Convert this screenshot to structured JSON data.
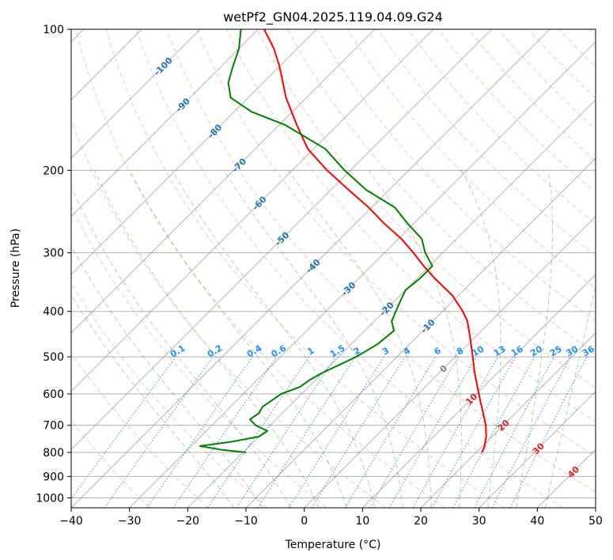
{
  "chart_data": {
    "type": "line",
    "title": "wetPf2_GN04.2025.119.04.09.G24",
    "xlabel": "Temperature (°C)",
    "ylabel": "Pressure (hPa)",
    "xlim": [
      -40,
      50
    ],
    "ylim": [
      1050,
      100
    ],
    "y_scale": "log",
    "x_ticks": [
      "−40",
      "−30",
      "−20",
      "−10",
      "0",
      "10",
      "20",
      "30",
      "40",
      "50"
    ],
    "y_ticks": [
      "100",
      "200",
      "300",
      "400",
      "500",
      "600",
      "700",
      "800",
      "900",
      "1000"
    ],
    "grid": true,
    "series": [
      {
        "role": "temperature",
        "color": "#ff0000",
        "pressure": [
          800,
          780,
          740,
          700,
          660,
          620,
          580,
          540,
          500,
          460,
          420,
          400,
          370,
          340,
          320,
          300,
          280,
          260,
          240,
          220,
          200,
          180,
          160,
          140,
          120,
          110,
          100
        ],
        "temperature": [
          21.0,
          20.5,
          19.0,
          17.0,
          14.5,
          11.8,
          9.0,
          6.0,
          3.0,
          -0.3,
          -4.0,
          -6.5,
          -11.0,
          -17.0,
          -21.0,
          -25.0,
          -29.5,
          -35.0,
          -40.5,
          -47.0,
          -54.0,
          -61.0,
          -67.0,
          -73.5,
          -80.0,
          -84.0,
          -89.0
        ]
      },
      {
        "role": "dewpoint",
        "color": "#008000",
        "pressure": [
          800,
          790,
          775,
          760,
          740,
          720,
          700,
          680,
          660,
          640,
          620,
          600,
          580,
          560,
          540,
          520,
          500,
          470,
          440,
          420,
          400,
          380,
          360,
          340,
          320,
          300,
          280,
          260,
          240,
          220,
          200,
          180,
          160,
          150,
          140,
          130,
          120,
          110,
          100
        ],
        "temperature": [
          -19.5,
          -24.0,
          -28.5,
          -24.0,
          -20.0,
          -19.5,
          -22.5,
          -24.5,
          -24.0,
          -24.5,
          -24.0,
          -23.5,
          -21.5,
          -21.0,
          -20.0,
          -18.5,
          -17.0,
          -15.5,
          -15.0,
          -17.0,
          -18.0,
          -19.0,
          -20.0,
          -19.5,
          -19.5,
          -23.0,
          -26.0,
          -31.0,
          -36.0,
          -44.0,
          -51.0,
          -58.0,
          -69.0,
          -77.0,
          -83.0,
          -86.0,
          -88.0,
          -90.0,
          -93.0
        ]
      }
    ],
    "dry_adiabats": [
      -30,
      -20,
      -10,
      0,
      10,
      20,
      30,
      40,
      50,
      60,
      70,
      80,
      90,
      100,
      110,
      120,
      130,
      140,
      150,
      160,
      170,
      180,
      190
    ],
    "moist_adiabats": [
      -15,
      -10,
      -5,
      0,
      5,
      10,
      15,
      20,
      25,
      30,
      35,
      40
    ],
    "mixing_ratio_labels": [
      "0.1",
      "0.2",
      "0.4",
      "0.6",
      "1",
      "1.5",
      "2",
      "3",
      "4",
      "6",
      "8",
      "10",
      "13",
      "16",
      "20",
      "25",
      "30",
      "36"
    ],
    "isotherm_labels_left": [
      "-100",
      "-90",
      "-80",
      "-70",
      "-60",
      "-50",
      "-40",
      "-30",
      "-20",
      "-10"
    ],
    "isotherm_labels_right": [
      "0",
      "10",
      "20",
      "30",
      "40"
    ],
    "colors": {
      "isotherm_label": "#1f77b4",
      "mixing_ratio": "#1e90ff",
      "isotherm_label_warm": "#d62728",
      "isotherm_label_zero": "#808080",
      "dry_adiabat": "#ff7f50",
      "moist_adiabat": "#2ca02c",
      "skewed_grid": "#888888"
    }
  }
}
